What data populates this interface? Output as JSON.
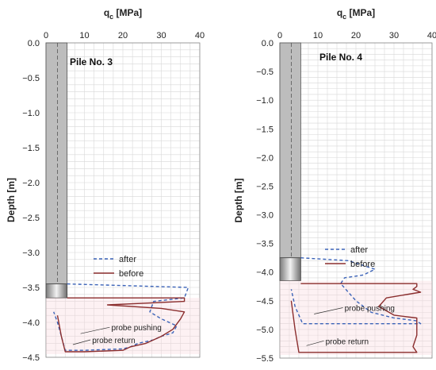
{
  "chart_data": [
    {
      "type": "line",
      "title": "Pile No. 3",
      "xlabel_base": "q",
      "xlabel_sub": "c",
      "xlabel_unit": " [MPa]",
      "ylabel": "Depth [m]",
      "xlim": [
        0,
        40
      ],
      "ylim": [
        -4.5,
        0.0
      ],
      "xticks": [
        0,
        10,
        20,
        30,
        40
      ],
      "yticks": [
        0.0,
        -0.5,
        -1.0,
        -1.5,
        -2.0,
        -2.5,
        -3.0,
        -3.5,
        -4.0,
        -4.5
      ],
      "ytick_labels": [
        "0.0",
        "−0.5",
        "−1.0",
        "−1.5",
        "−2.0",
        "−2.5",
        "−3.0",
        "−3.5",
        "−4.0",
        "−4.5"
      ],
      "grid": true,
      "legend_position": "lower-right",
      "pile_shaft": {
        "x": [
          0,
          5.5
        ],
        "depth": [
          0.0,
          -3.45
        ],
        "centerline_x": 3
      },
      "pile_tip": {
        "x": [
          0,
          5.5
        ],
        "depth": [
          -3.45,
          -3.65
        ]
      },
      "annotations": [
        "probe pushing",
        "probe return"
      ],
      "series": [
        {
          "name": "after",
          "color": "#3b63b8",
          "dash": "4,3",
          "x": [
            5.5,
            37,
            36,
            28,
            27,
            30,
            34,
            33,
            30,
            28,
            24,
            22,
            20,
            10,
            5,
            4,
            3,
            2
          ],
          "y": [
            -3.45,
            -3.5,
            -3.65,
            -3.7,
            -3.85,
            -3.95,
            -4.05,
            -4.15,
            -4.2,
            -4.25,
            -4.3,
            -4.35,
            -4.38,
            -4.4,
            -4.4,
            -4.2,
            -4.0,
            -3.85
          ]
        },
        {
          "name": "before",
          "color": "#8b2e2e",
          "dash": "",
          "x": [
            5.5,
            36,
            36,
            16,
            30,
            36,
            35,
            33,
            30,
            28,
            26,
            22,
            20,
            10,
            5,
            4,
            3
          ],
          "y": [
            -3.65,
            -3.65,
            -3.7,
            -3.75,
            -3.8,
            -3.85,
            -3.95,
            -4.1,
            -4.2,
            -4.25,
            -4.3,
            -4.35,
            -4.4,
            -4.42,
            -4.42,
            -4.2,
            -3.9
          ]
        }
      ]
    },
    {
      "type": "line",
      "title": "Pile No. 4",
      "xlabel_base": "q",
      "xlabel_sub": "c",
      "xlabel_unit": " [MPa]",
      "ylabel": "Depth [m]",
      "xlim": [
        0,
        40
      ],
      "ylim": [
        -5.5,
        0.0
      ],
      "xticks": [
        0,
        10,
        20,
        30,
        40
      ],
      "yticks": [
        0.0,
        -0.5,
        -1.0,
        -1.5,
        -2.0,
        -2.5,
        -3.0,
        -3.5,
        -4.0,
        -4.5,
        -5.0,
        -5.5
      ],
      "ytick_labels": [
        "0.0",
        "−0.5",
        "−1.0",
        "−1.5",
        "−2.0",
        "−2.5",
        "−3.0",
        "−3.5",
        "−4.0",
        "−4.5",
        "−5.0",
        "−5.5"
      ],
      "grid": true,
      "legend_position": "upper-right",
      "pile_shaft": {
        "x": [
          0,
          5.5
        ],
        "depth": [
          0.0,
          -3.75
        ],
        "centerline_x": 3
      },
      "pile_tip": {
        "x": [
          0,
          5.5
        ],
        "depth": [
          -3.75,
          -4.15
        ]
      },
      "annotations": [
        "probe pushing",
        "probe return"
      ],
      "series": [
        {
          "name": "after",
          "color": "#3b63b8",
          "dash": "4,3",
          "x": [
            5.5,
            18,
            25,
            22,
            17,
            16,
            18,
            20,
            24,
            30,
            36,
            37,
            30,
            20,
            12,
            6,
            4,
            3
          ],
          "y": [
            -3.75,
            -3.8,
            -3.95,
            -4.05,
            -4.1,
            -4.2,
            -4.35,
            -4.5,
            -4.7,
            -4.8,
            -4.85,
            -4.9,
            -4.9,
            -4.9,
            -4.9,
            -4.9,
            -4.6,
            -4.3
          ]
        },
        {
          "name": "before",
          "color": "#8b2e2e",
          "dash": "",
          "x": [
            5.5,
            36,
            36,
            35,
            37,
            28,
            26,
            30,
            36,
            36,
            36,
            35,
            36,
            5,
            4,
            3
          ],
          "y": [
            -4.2,
            -4.2,
            -4.25,
            -4.3,
            -4.35,
            -4.45,
            -4.6,
            -4.75,
            -4.8,
            -4.9,
            -5.1,
            -5.3,
            -5.4,
            -5.4,
            -5.0,
            -4.5
          ]
        }
      ]
    }
  ]
}
